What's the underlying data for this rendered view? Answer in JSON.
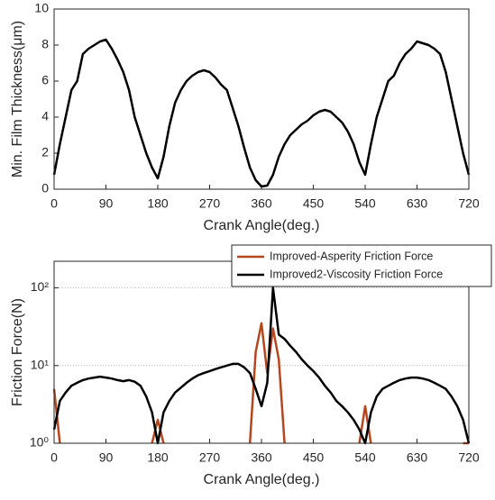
{
  "chart_data": [
    {
      "type": "line",
      "xlabel": "Crank Angle(deg.)",
      "ylabel": "Min. Film Thickness(μm)",
      "x": [
        0,
        10,
        20,
        30,
        40,
        50,
        60,
        70,
        80,
        90,
        100,
        110,
        120,
        130,
        140,
        150,
        160,
        170,
        180,
        190,
        200,
        210,
        220,
        230,
        240,
        250,
        260,
        270,
        280,
        290,
        300,
        310,
        320,
        330,
        340,
        350,
        360,
        370,
        380,
        390,
        400,
        410,
        420,
        430,
        440,
        450,
        460,
        470,
        480,
        490,
        500,
        510,
        520,
        530,
        540,
        550,
        560,
        570,
        580,
        590,
        600,
        610,
        620,
        630,
        640,
        650,
        660,
        670,
        680,
        690,
        700,
        710,
        720
      ],
      "series": [
        {
          "color": "#000000",
          "values": [
            0.8,
            2.5,
            4,
            5.5,
            6,
            7.5,
            7.8,
            8,
            8.2,
            8.3,
            7.8,
            7.2,
            6.5,
            5.5,
            4,
            3,
            2,
            1.2,
            0.6,
            1.8,
            3.5,
            4.8,
            5.5,
            6,
            6.3,
            6.5,
            6.6,
            6.5,
            6.2,
            5.8,
            5.5,
            4.5,
            3.5,
            2.3,
            1.2,
            0.5,
            0.15,
            0.2,
            0.8,
            1.8,
            2.5,
            3,
            3.3,
            3.6,
            3.8,
            4.1,
            4.3,
            4.4,
            4.3,
            4,
            3.7,
            3.2,
            2.5,
            1.5,
            0.8,
            2.5,
            4,
            5,
            6,
            6.3,
            7,
            7.5,
            7.8,
            8.2,
            8.1,
            8,
            7.8,
            7.5,
            6.5,
            5,
            3.5,
            2,
            0.8
          ]
        }
      ],
      "xlim": [
        0,
        720
      ],
      "xticks": [
        0,
        90,
        180,
        270,
        360,
        450,
        540,
        630,
        720
      ],
      "ylim": [
        0,
        10
      ],
      "yticks": [
        0,
        2,
        4,
        6,
        8,
        10
      ]
    },
    {
      "type": "line",
      "xlabel": "Crank Angle(deg.)",
      "ylabel": "Friction Force(N)",
      "log_scale": "y",
      "grid": true,
      "legend": "top-right",
      "x": [
        0,
        10,
        20,
        30,
        40,
        50,
        60,
        70,
        80,
        90,
        100,
        110,
        120,
        130,
        140,
        150,
        160,
        170,
        180,
        190,
        200,
        210,
        220,
        230,
        240,
        250,
        260,
        270,
        280,
        290,
        300,
        310,
        320,
        330,
        340,
        350,
        360,
        370,
        380,
        390,
        400,
        410,
        420,
        430,
        440,
        450,
        460,
        470,
        480,
        490,
        500,
        510,
        520,
        530,
        540,
        550,
        560,
        570,
        580,
        590,
        600,
        610,
        620,
        630,
        640,
        650,
        660,
        670,
        680,
        690,
        700,
        710,
        720
      ],
      "series": [
        {
          "name": "Improved-Asperity Friction Force",
          "color": "#b5471f",
          "values": [
            5,
            1,
            null,
            null,
            null,
            null,
            null,
            null,
            null,
            null,
            null,
            null,
            null,
            null,
            null,
            null,
            null,
            1,
            2,
            1,
            null,
            null,
            null,
            null,
            null,
            null,
            null,
            null,
            null,
            null,
            null,
            null,
            null,
            null,
            1,
            15,
            35,
            8,
            30,
            12,
            1,
            null,
            null,
            null,
            null,
            null,
            null,
            null,
            null,
            null,
            null,
            null,
            null,
            1,
            3,
            1,
            null,
            null,
            null,
            null,
            null,
            null,
            null,
            null,
            null,
            null,
            null,
            null,
            null,
            null,
            null,
            1,
            1
          ]
        },
        {
          "name": "Improved2-Viscosity Friction Force",
          "color": "#000000",
          "values": [
            1.5,
            3.5,
            4.5,
            5.5,
            6,
            6.5,
            6.8,
            7,
            7.2,
            7,
            6.8,
            6.5,
            6.3,
            6.5,
            6.2,
            5.5,
            4,
            2.5,
            1,
            2.5,
            3.5,
            4.5,
            5.2,
            6,
            6.8,
            7.5,
            8,
            8.5,
            9,
            9.5,
            10,
            10.5,
            10.5,
            9.5,
            8,
            5,
            3,
            6,
            100,
            25,
            22,
            18,
            15,
            12,
            10,
            8.5,
            7,
            5.5,
            4.5,
            3.5,
            3,
            2.5,
            2,
            1.5,
            1,
            2.5,
            4,
            5,
            5.5,
            6,
            6.5,
            6.8,
            7,
            7,
            6.8,
            6.5,
            6,
            5.5,
            5,
            4,
            3,
            2,
            1
          ]
        }
      ],
      "xlim": [
        0,
        720
      ],
      "xticks": [
        0,
        90,
        180,
        270,
        360,
        450,
        540,
        630,
        720
      ],
      "ylim": [
        1,
        220
      ],
      "yticks": [
        {
          "value": 1,
          "label": "10⁰"
        },
        {
          "value": 10,
          "label": "10¹"
        },
        {
          "value": 100,
          "label": "10²"
        }
      ]
    }
  ]
}
